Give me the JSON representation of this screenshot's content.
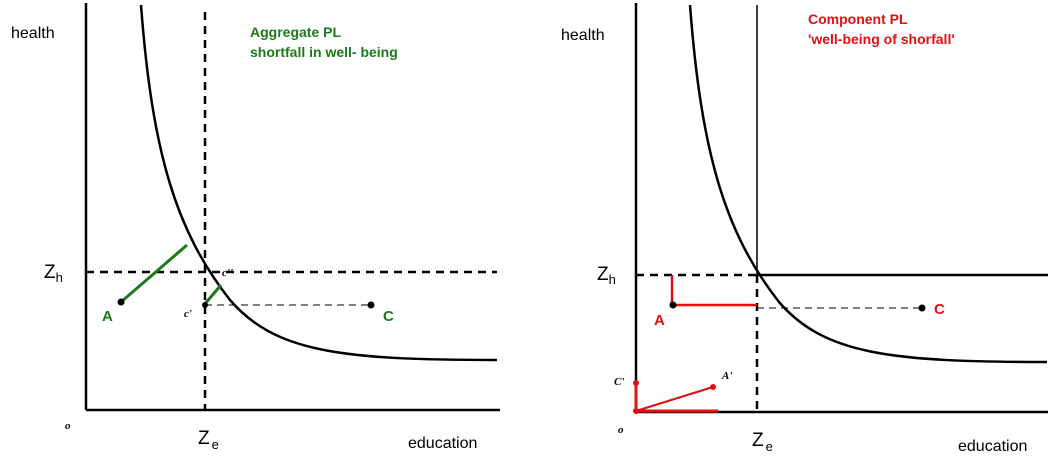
{
  "left": {
    "title_line1": "Aggregate PL",
    "title_line2": "shortfall in well- being",
    "y_label": "health",
    "x_label": "education",
    "origin": "o",
    "zh_main": "Z",
    "zh_sub": "h",
    "ze_main": "Z",
    "ze_sub": "e",
    "point_a": "A",
    "point_c": "C",
    "point_c_prime": "c'",
    "point_c_dprime": "c''",
    "title_color": "#1a7a1a"
  },
  "right": {
    "title_line1": "Component PL",
    "title_line2": "'well-being  of shorfall'",
    "y_label": "health",
    "x_label": "education",
    "origin": "o",
    "zh_main": "Z",
    "zh_sub": "h",
    "ze_main": "Z",
    "ze_sub": "e",
    "point_a": "A",
    "point_c": "C",
    "point_a_prime": "A'",
    "point_c_prime": "C'",
    "title_color": "#e01010"
  }
}
